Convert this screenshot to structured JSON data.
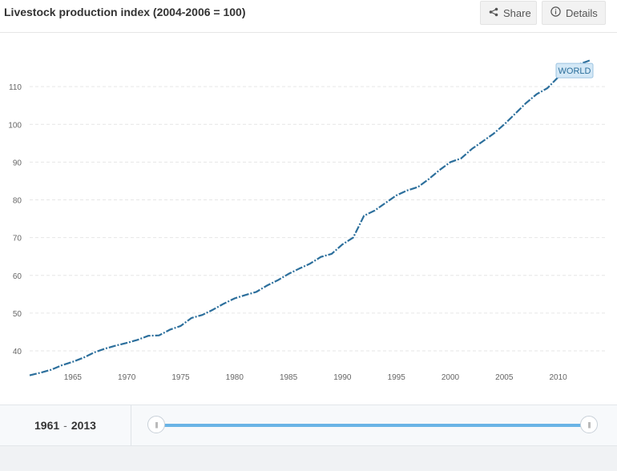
{
  "header": {
    "title": "Livestock production index (2004-2006 = 100)",
    "share_label": "Share",
    "details_label": "Details"
  },
  "chart_data": {
    "type": "line",
    "title": "Livestock production index (2004-2006 = 100)",
    "xlabel": "",
    "ylabel": "",
    "xlim": [
      1961,
      2013
    ],
    "ylim": [
      33,
      120
    ],
    "grid": true,
    "x_ticks": [
      1965,
      1970,
      1975,
      1980,
      1985,
      1990,
      1995,
      2000,
      2005,
      2010
    ],
    "y_ticks": [
      40,
      50,
      60,
      70,
      80,
      90,
      100,
      110
    ],
    "series": [
      {
        "name": "WORLD",
        "color": "#2c6f9c",
        "x": [
          1961,
          1962,
          1963,
          1964,
          1965,
          1966,
          1967,
          1968,
          1969,
          1970,
          1971,
          1972,
          1973,
          1974,
          1975,
          1976,
          1977,
          1978,
          1979,
          1980,
          1981,
          1982,
          1983,
          1984,
          1985,
          1986,
          1987,
          1988,
          1989,
          1990,
          1991,
          1992,
          1993,
          1994,
          1995,
          1996,
          1997,
          1998,
          1999,
          2000,
          2001,
          2002,
          2003,
          2004,
          2005,
          2006,
          2007,
          2008,
          2009,
          2010,
          2011,
          2012,
          2013
        ],
        "values": [
          33.5,
          34.2,
          35.0,
          36.2,
          37.1,
          38.2,
          39.6,
          40.6,
          41.4,
          42.1,
          42.9,
          44.0,
          44.1,
          45.6,
          46.6,
          48.7,
          49.5,
          50.9,
          52.5,
          53.9,
          54.8,
          55.6,
          57.3,
          58.7,
          60.4,
          61.8,
          63.1,
          64.9,
          65.7,
          68.2,
          70.0,
          75.8,
          77.2,
          79.2,
          81.2,
          82.5,
          83.4,
          85.5,
          87.9,
          90.0,
          91.0,
          93.5,
          95.5,
          97.5,
          100.0,
          102.8,
          105.6,
          108.0,
          109.6,
          112.5,
          114.3,
          116.0,
          117.0
        ]
      }
    ]
  },
  "range": {
    "start": "1961",
    "separator": "-",
    "end": "2013"
  }
}
